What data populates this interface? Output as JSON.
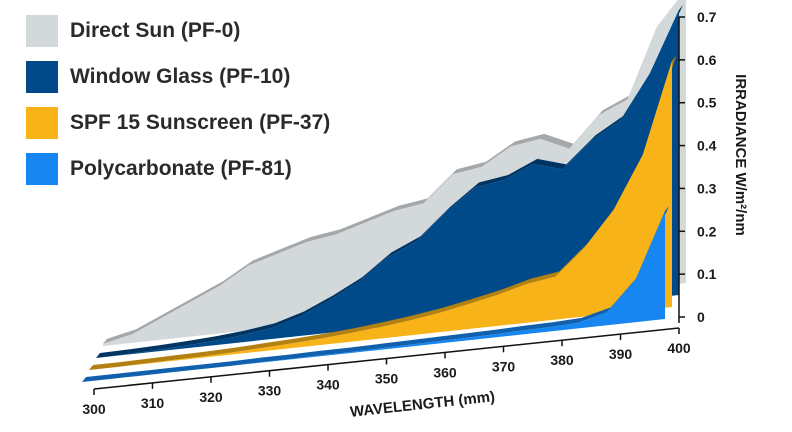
{
  "chart_data": {
    "type": "area",
    "xlabel": "WAVELENGTH (mm)",
    "ylabel": "IRRADIANCE W/m²/nm",
    "xlim": [
      300,
      400
    ],
    "ylim": [
      0,
      0.7
    ],
    "x_ticks": [
      300,
      310,
      320,
      330,
      340,
      350,
      360,
      370,
      380,
      390,
      400
    ],
    "y_ticks": [
      0,
      0.1,
      0.2,
      0.3,
      0.4,
      0.5,
      0.6,
      0.7
    ],
    "legend_position": "top-left",
    "x": [
      300,
      305,
      310,
      315,
      320,
      325,
      330,
      335,
      340,
      345,
      350,
      355,
      360,
      365,
      370,
      375,
      380,
      385,
      390,
      395,
      400
    ],
    "series": [
      {
        "name": "Direct Sun (PF-0)",
        "color": "#d3d8db",
        "values": [
          0.005,
          0.02,
          0.05,
          0.08,
          0.11,
          0.15,
          0.17,
          0.19,
          0.2,
          0.22,
          0.24,
          0.25,
          0.31,
          0.32,
          0.36,
          0.37,
          0.34,
          0.41,
          0.44,
          0.6,
          0.68
        ]
      },
      {
        "name": "Window Glass (PF-10)",
        "color": "#004a8a",
        "values": [
          0.0,
          0.001,
          0.003,
          0.006,
          0.01,
          0.016,
          0.025,
          0.045,
          0.075,
          0.11,
          0.16,
          0.19,
          0.25,
          0.3,
          0.31,
          0.34,
          0.32,
          0.38,
          0.42,
          0.52,
          0.66
        ]
      },
      {
        "name": "SPF 15 Sunscreen (PF-37)",
        "color": "#f7b318",
        "values": [
          0.0,
          0.0,
          0.001,
          0.002,
          0.003,
          0.005,
          0.008,
          0.011,
          0.015,
          0.02,
          0.027,
          0.035,
          0.045,
          0.058,
          0.072,
          0.09,
          0.1,
          0.16,
          0.24,
          0.36,
          0.57
        ]
      },
      {
        "name": "Polycarbonate (PF-81)",
        "color": "#1786f0",
        "values": [
          0.0,
          0.0,
          0.0,
          0.0,
          0.0,
          0.0,
          0.001,
          0.001,
          0.002,
          0.002,
          0.003,
          0.004,
          0.005,
          0.006,
          0.007,
          0.009,
          0.01,
          0.013,
          0.03,
          0.1,
          0.25
        ]
      }
    ]
  }
}
